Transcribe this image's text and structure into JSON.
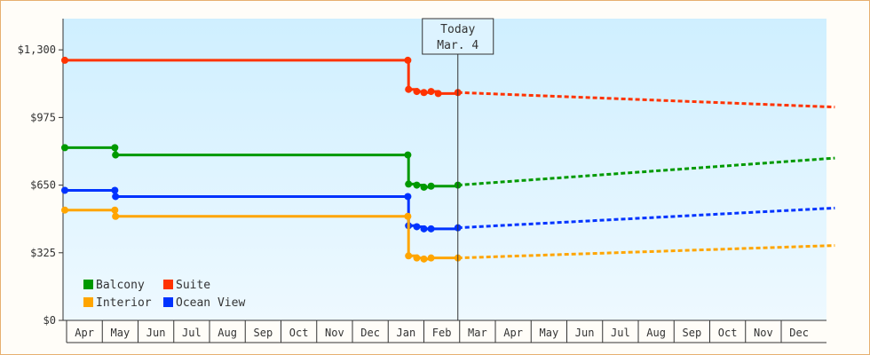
{
  "chart_data": {
    "type": "line",
    "title": "",
    "xlabel": "",
    "ylabel": "",
    "ylim": [
      0,
      1450
    ],
    "yticks": [
      0,
      325,
      650,
      975,
      1300
    ],
    "ytick_labels": [
      "$0",
      "$325",
      "$650",
      "$975",
      "$1,300"
    ],
    "x_categories": [
      "Apr",
      "May",
      "Jun",
      "Jul",
      "Aug",
      "Sep",
      "Oct",
      "Nov",
      "Dec",
      "Jan",
      "Feb",
      "Mar",
      "Apr",
      "May",
      "Jun",
      "Jul",
      "Aug",
      "Sep",
      "Oct",
      "Nov",
      "Dec"
    ],
    "today_marker": {
      "line1": "Today",
      "line2": "Mar. 4",
      "x": 11.0
    },
    "grid": false,
    "legend_position": "bottom-left",
    "series": [
      {
        "name": "Suite",
        "color": "#ff3300",
        "history": [
          [
            0,
            1250
          ],
          [
            9.6,
            1250
          ],
          [
            9.62,
            1110
          ],
          [
            9.85,
            1100
          ],
          [
            10.05,
            1095
          ],
          [
            10.25,
            1100
          ],
          [
            10.45,
            1090
          ],
          [
            11.0,
            1095
          ]
        ],
        "forecast": [
          [
            11.0,
            1095
          ],
          [
            21.55,
            1025
          ]
        ]
      },
      {
        "name": "Balcony",
        "color": "#009900",
        "history": [
          [
            0,
            830
          ],
          [
            1.4,
            830
          ],
          [
            1.42,
            795
          ],
          [
            9.6,
            795
          ],
          [
            9.62,
            655
          ],
          [
            9.85,
            650
          ],
          [
            10.05,
            640
          ],
          [
            10.25,
            645
          ],
          [
            11.0,
            650
          ]
        ],
        "forecast": [
          [
            11.0,
            650
          ],
          [
            21.55,
            780
          ]
        ]
      },
      {
        "name": "Ocean View",
        "color": "#0033ff",
        "history": [
          [
            0,
            625
          ],
          [
            1.4,
            625
          ],
          [
            1.42,
            595
          ],
          [
            9.6,
            595
          ],
          [
            9.62,
            455
          ],
          [
            9.85,
            450
          ],
          [
            10.05,
            440
          ],
          [
            10.25,
            440
          ],
          [
            11.0,
            445
          ]
        ],
        "forecast": [
          [
            11.0,
            445
          ],
          [
            21.55,
            540
          ]
        ]
      },
      {
        "name": "Interior",
        "color": "#ffa500",
        "history": [
          [
            0,
            530
          ],
          [
            1.4,
            530
          ],
          [
            1.42,
            500
          ],
          [
            9.6,
            500
          ],
          [
            9.62,
            310
          ],
          [
            9.85,
            300
          ],
          [
            10.05,
            295
          ],
          [
            10.25,
            300
          ],
          [
            11.0,
            300
          ]
        ],
        "forecast": [
          [
            11.0,
            300
          ],
          [
            21.55,
            360
          ]
        ]
      }
    ],
    "legend": [
      {
        "name": "Balcony",
        "color": "#009900"
      },
      {
        "name": "Suite",
        "color": "#ff3300"
      },
      {
        "name": "Interior",
        "color": "#ffa500"
      },
      {
        "name": "Ocean View",
        "color": "#0033ff"
      }
    ]
  }
}
